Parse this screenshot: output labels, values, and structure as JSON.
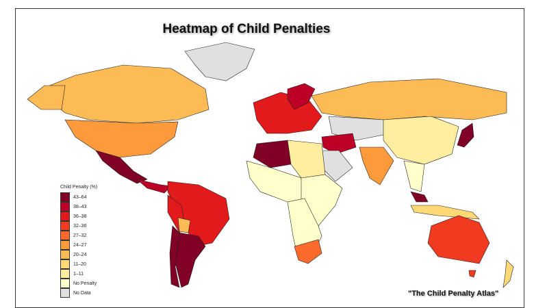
{
  "title": "Heatmap of Child Penalties",
  "credit": "\"The Child Penalty Atlas\"",
  "legend": {
    "title": "Child Penalty (%)",
    "items": [
      {
        "label": "43–64",
        "color": "#800026"
      },
      {
        "label": "38–43",
        "color": "#bd0026"
      },
      {
        "label": "36–38",
        "color": "#e31a1c"
      },
      {
        "label": "32–36",
        "color": "#f03b20"
      },
      {
        "label": "27–32",
        "color": "#fc6a2c"
      },
      {
        "label": "24–27",
        "color": "#fd9a3c"
      },
      {
        "label": "20–24",
        "color": "#fdbb56"
      },
      {
        "label": "11–20",
        "color": "#fed976"
      },
      {
        "label": "1–11",
        "color": "#ffeda0"
      },
      {
        "label": "No Penalty",
        "color": "#ffffcc"
      },
      {
        "label": "No Data",
        "color": "#e0e0e0"
      }
    ]
  }
}
